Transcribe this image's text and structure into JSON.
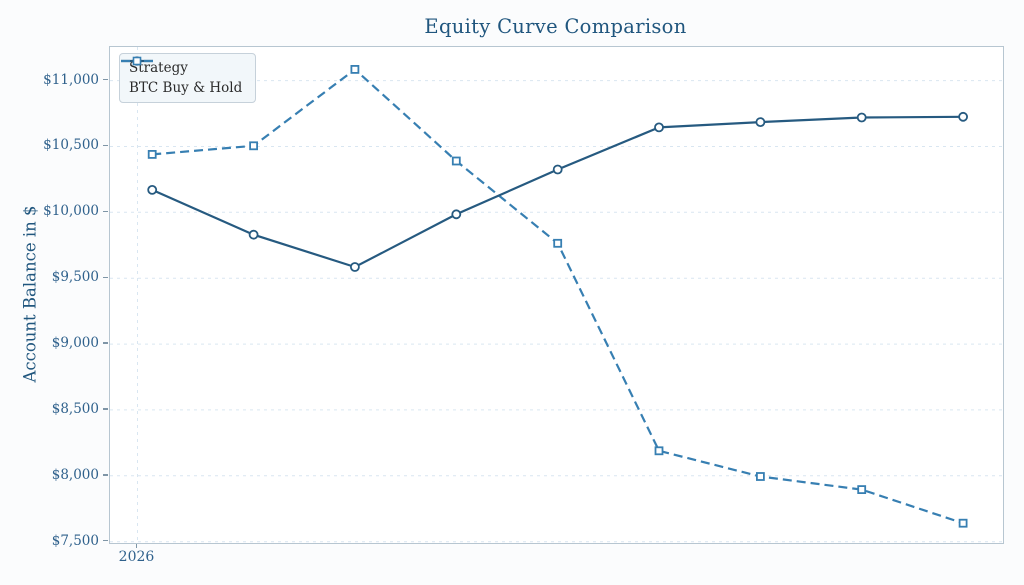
{
  "chart_data": {
    "type": "line",
    "title": "Equity Curve Comparison",
    "xlabel": "",
    "ylabel": "Account Balance in $",
    "x": [
      1,
      2,
      3,
      4,
      5,
      6,
      7,
      8,
      9
    ],
    "x_tick_labels": [
      "2026"
    ],
    "y_ticks": [
      7500,
      8000,
      8500,
      9000,
      9500,
      10000,
      10500,
      11000
    ],
    "y_tick_labels": [
      "$7,500",
      "$8,000",
      "$8,500",
      "$9,000",
      "$9,500",
      "$10,000",
      "$10,500",
      "$11,000"
    ],
    "ylim": [
      7490,
      11255
    ],
    "series": [
      {
        "name": "Strategy",
        "values": [
          10170,
          9830,
          9585,
          9985,
          10325,
          10645,
          10685,
          10720,
          10725
        ],
        "color": "#265a80",
        "line_style": "solid",
        "marker": "circle"
      },
      {
        "name": "BTC Buy & Hold",
        "values": [
          10440,
          10505,
          11085,
          10390,
          9765,
          8190,
          7995,
          7895,
          7640
        ],
        "color": "#377fb2",
        "line_style": "dashed",
        "marker": "square"
      }
    ],
    "legend_position": "upper-left",
    "grid": true,
    "colors": {
      "title_text": "#20567e",
      "tick_text": "#2f618c",
      "grid_line": "#d9e6f1",
      "spine": "#b7c6d1",
      "figure_bg": "#fbfcfd",
      "plot_bg": "#ffffff",
      "legend_bg": "#f1f6fa",
      "legend_border": "#c6d1da",
      "legend_text": "#2b2b2b"
    },
    "layout_hints": {
      "x_first_frac": 0.0473,
      "x_last_frac": 0.9553,
      "tick_2026_frac": 0.0308,
      "vertical_gridline_at_tick": true
    }
  }
}
